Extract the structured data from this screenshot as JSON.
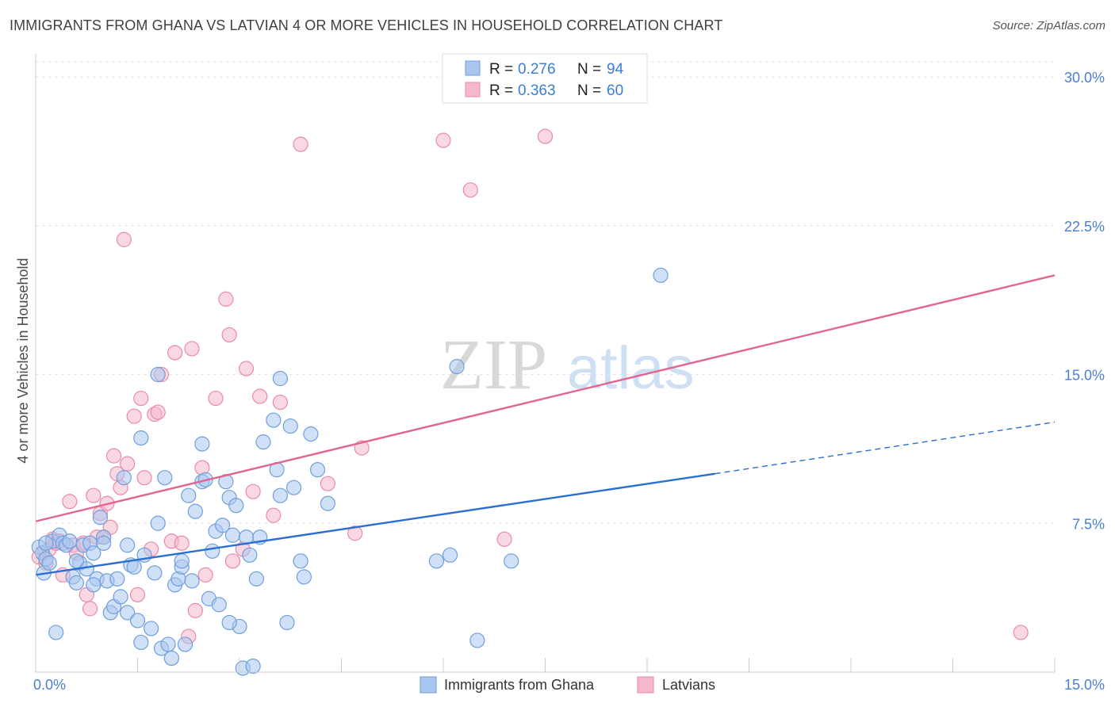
{
  "title": "IMMIGRANTS FROM GHANA VS LATVIAN 4 OR MORE VEHICLES IN HOUSEHOLD CORRELATION CHART",
  "source": "Source: ZipAtlas.com",
  "watermark": {
    "zip": "ZIP",
    "atlas": "atlas"
  },
  "colors": {
    "blue_fill": "#a9c6ee",
    "blue_stroke": "#6f9fdc",
    "blue_line": "#2a6fd1",
    "pink_fill": "#f5b8cb",
    "pink_stroke": "#e98aa9",
    "pink_line": "#e06591"
  },
  "legend": {
    "r_label": "R =",
    "n_label": "N =",
    "rows": [
      {
        "r": "0.276",
        "n": "94"
      },
      {
        "r": "0.363",
        "n": "60"
      }
    ]
  },
  "chart_data": {
    "type": "scatter",
    "title": "IMMIGRANTS FROM GHANA VS LATVIAN 4 OR MORE VEHICLES IN HOUSEHOLD CORRELATION CHART",
    "ylabel": "4 or more Vehicles in Household",
    "xlabel": "",
    "xlim": [
      0,
      15
    ],
    "ylim": [
      0,
      30
    ],
    "x_ticks": [
      {
        "v": 0,
        "label": "0.0%"
      },
      {
        "v": 15,
        "label": "15.0%"
      }
    ],
    "y_ticks": [
      {
        "v": 7.5,
        "label": "7.5%"
      },
      {
        "v": 15,
        "label": "15.0%"
      },
      {
        "v": 22.5,
        "label": "22.5%"
      },
      {
        "v": 30,
        "label": "30.0%"
      }
    ],
    "series": [
      {
        "name": "Immigrants from Ghana",
        "color": "blue",
        "trend": {
          "x0": 0,
          "y0": 4.9,
          "x1": 10.0,
          "y1": 10.0,
          "dash_x1": 15,
          "dash_y1": 12.6
        },
        "points": [
          [
            0.05,
            6.3
          ],
          [
            0.1,
            6.0
          ],
          [
            0.15,
            5.7
          ],
          [
            0.12,
            5.0
          ],
          [
            0.2,
            5.5
          ],
          [
            0.25,
            6.6
          ],
          [
            0.3,
            2.0
          ],
          [
            0.35,
            6.9
          ],
          [
            0.4,
            6.5
          ],
          [
            0.45,
            6.4
          ],
          [
            0.5,
            6.6
          ],
          [
            0.55,
            4.8
          ],
          [
            0.6,
            4.5
          ],
          [
            0.65,
            5.5
          ],
          [
            0.7,
            6.4
          ],
          [
            0.75,
            5.2
          ],
          [
            0.8,
            6.5
          ],
          [
            0.85,
            6.0
          ],
          [
            0.9,
            4.7
          ],
          [
            0.95,
            7.8
          ],
          [
            1.0,
            6.8
          ],
          [
            1.05,
            4.6
          ],
          [
            1.1,
            3.0
          ],
          [
            1.15,
            3.3
          ],
          [
            1.2,
            4.7
          ],
          [
            1.25,
            3.8
          ],
          [
            1.3,
            9.8
          ],
          [
            1.35,
            3.0
          ],
          [
            1.4,
            5.4
          ],
          [
            1.45,
            5.3
          ],
          [
            1.5,
            2.6
          ],
          [
            1.55,
            1.5
          ],
          [
            1.6,
            5.9
          ],
          [
            1.7,
            2.2
          ],
          [
            1.75,
            5.0
          ],
          [
            1.8,
            7.5
          ],
          [
            1.85,
            1.2
          ],
          [
            1.9,
            9.8
          ],
          [
            1.95,
            1.4
          ],
          [
            2.0,
            0.7
          ],
          [
            2.05,
            4.4
          ],
          [
            2.1,
            4.7
          ],
          [
            2.15,
            5.3
          ],
          [
            2.2,
            1.4
          ],
          [
            2.25,
            8.9
          ],
          [
            2.3,
            4.6
          ],
          [
            2.35,
            8.1
          ],
          [
            2.45,
            9.6
          ],
          [
            2.5,
            9.7
          ],
          [
            2.55,
            3.7
          ],
          [
            2.6,
            6.1
          ],
          [
            2.65,
            7.1
          ],
          [
            2.7,
            3.4
          ],
          [
            2.75,
            7.4
          ],
          [
            2.8,
            9.6
          ],
          [
            2.85,
            8.8
          ],
          [
            2.9,
            6.9
          ],
          [
            2.95,
            8.4
          ],
          [
            3.0,
            2.3
          ],
          [
            3.05,
            0.2
          ],
          [
            3.1,
            6.8
          ],
          [
            3.15,
            5.9
          ],
          [
            3.2,
            0.3
          ],
          [
            3.25,
            4.7
          ],
          [
            3.3,
            6.8
          ],
          [
            3.35,
            11.6
          ],
          [
            3.5,
            12.7
          ],
          [
            3.55,
            10.2
          ],
          [
            3.6,
            8.9
          ],
          [
            3.7,
            2.5
          ],
          [
            3.75,
            12.4
          ],
          [
            3.8,
            9.3
          ],
          [
            3.9,
            5.6
          ],
          [
            3.95,
            4.8
          ],
          [
            4.05,
            12.0
          ],
          [
            4.15,
            10.2
          ],
          [
            4.3,
            8.5
          ],
          [
            5.9,
            5.6
          ],
          [
            6.1,
            5.9
          ],
          [
            6.5,
            1.6
          ],
          [
            7.0,
            5.6
          ],
          [
            9.2,
            20.0
          ],
          [
            1.8,
            15.0
          ],
          [
            3.6,
            14.8
          ],
          [
            6.2,
            15.4
          ],
          [
            0.6,
            5.6
          ],
          [
            0.85,
            4.4
          ],
          [
            1.55,
            11.8
          ],
          [
            2.45,
            11.5
          ],
          [
            1.0,
            6.5
          ],
          [
            0.15,
            6.5
          ],
          [
            2.15,
            5.6
          ],
          [
            2.85,
            2.5
          ],
          [
            1.35,
            6.4
          ]
        ]
      },
      {
        "name": "Latvians",
        "color": "pink",
        "trend": {
          "x0": 0,
          "y0": 7.6,
          "x1": 15,
          "y1": 20.0
        },
        "points": [
          [
            0.05,
            5.8
          ],
          [
            0.1,
            6.0
          ],
          [
            0.15,
            5.5
          ],
          [
            0.2,
            6.2
          ],
          [
            0.25,
            6.7
          ],
          [
            0.3,
            6.5
          ],
          [
            0.35,
            6.6
          ],
          [
            0.5,
            8.6
          ],
          [
            0.55,
            6.4
          ],
          [
            0.6,
            6.0
          ],
          [
            0.7,
            6.5
          ],
          [
            0.75,
            3.9
          ],
          [
            0.8,
            3.2
          ],
          [
            0.85,
            8.9
          ],
          [
            0.9,
            6.8
          ],
          [
            0.95,
            8.0
          ],
          [
            1.0,
            6.8
          ],
          [
            1.05,
            8.5
          ],
          [
            1.1,
            7.3
          ],
          [
            1.15,
            10.9
          ],
          [
            1.2,
            10.0
          ],
          [
            1.25,
            9.3
          ],
          [
            1.3,
            21.8
          ],
          [
            1.35,
            10.5
          ],
          [
            1.45,
            12.9
          ],
          [
            1.5,
            3.9
          ],
          [
            1.55,
            13.8
          ],
          [
            1.6,
            9.8
          ],
          [
            1.7,
            6.2
          ],
          [
            1.75,
            13.0
          ],
          [
            1.8,
            13.1
          ],
          [
            1.85,
            15.0
          ],
          [
            2.0,
            6.6
          ],
          [
            2.05,
            16.1
          ],
          [
            2.15,
            6.5
          ],
          [
            2.25,
            1.8
          ],
          [
            2.3,
            16.3
          ],
          [
            2.35,
            3.1
          ],
          [
            2.45,
            10.3
          ],
          [
            2.5,
            4.9
          ],
          [
            2.65,
            13.8
          ],
          [
            2.8,
            18.8
          ],
          [
            2.85,
            17.0
          ],
          [
            2.9,
            5.6
          ],
          [
            3.05,
            6.2
          ],
          [
            3.1,
            15.3
          ],
          [
            3.2,
            9.1
          ],
          [
            3.3,
            13.9
          ],
          [
            3.5,
            7.9
          ],
          [
            3.6,
            13.6
          ],
          [
            3.9,
            26.6
          ],
          [
            4.3,
            9.5
          ],
          [
            4.7,
            7.0
          ],
          [
            4.8,
            11.3
          ],
          [
            6.0,
            26.8
          ],
          [
            6.4,
            24.3
          ],
          [
            6.9,
            6.7
          ],
          [
            7.5,
            27.0
          ],
          [
            14.5,
            2.0
          ],
          [
            0.4,
            4.9
          ]
        ]
      }
    ]
  },
  "bottom_legend": [
    "Immigrants from Ghana",
    "Latvians"
  ]
}
